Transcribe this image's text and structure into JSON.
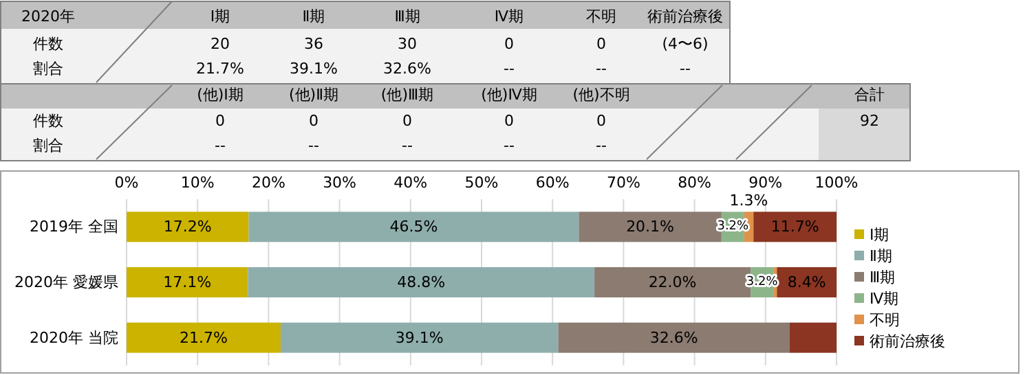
{
  "chart_data": {
    "type": "bar",
    "orientation": "horizontal",
    "stacked": true,
    "categories": [
      "2019年 全国",
      "2020年 愛媛県",
      "2020年 当院"
    ],
    "series": [
      {
        "name": "Ⅰ期",
        "color": "#cbb300",
        "values": [
          17.2,
          17.1,
          21.7
        ],
        "value_labels": [
          "17.2%",
          "17.1%",
          "21.7%"
        ]
      },
      {
        "name": "Ⅱ期",
        "color": "#8eaeac",
        "values": [
          46.5,
          48.8,
          39.1
        ],
        "value_labels": [
          "46.5%",
          "48.8%",
          "39.1%"
        ]
      },
      {
        "name": "Ⅲ期",
        "color": "#8b7b70",
        "values": [
          20.1,
          22.0,
          32.6
        ],
        "value_labels": [
          "20.1%",
          "22.0%",
          "32.6%"
        ]
      },
      {
        "name": "Ⅳ期",
        "color": "#8db58a",
        "values": [
          3.2,
          3.2,
          0
        ],
        "value_labels": [
          "3.2%",
          "3.2%",
          null
        ]
      },
      {
        "name": "不明",
        "color": "#e0924a",
        "values": [
          1.3,
          0.5,
          0
        ],
        "value_labels": [
          "1.3%",
          null,
          null
        ]
      },
      {
        "name": "術前治療後",
        "color": "#8b3522",
        "values": [
          11.7,
          8.4,
          6.6
        ],
        "value_labels": [
          "11.7%",
          "8.4%",
          null
        ]
      }
    ],
    "xlim": [
      0,
      100
    ],
    "xticks": [
      {
        "value": 0,
        "label": "0%"
      },
      {
        "value": 10,
        "label": "10%"
      },
      {
        "value": 20,
        "label": "20%"
      },
      {
        "value": 30,
        "label": "30%"
      },
      {
        "value": 40,
        "label": "40%"
      },
      {
        "value": 50,
        "label": "50%"
      },
      {
        "value": 60,
        "label": "60%"
      },
      {
        "value": 70,
        "label": "70%"
      },
      {
        "value": 80,
        "label": "80%"
      },
      {
        "value": 90,
        "label": "90%"
      },
      {
        "value": 100,
        "label": "100%"
      }
    ],
    "grid": "x",
    "legend": "right",
    "annotations": [
      "2020年",
      "Ⅰ期",
      "Ⅱ期",
      "Ⅲ期",
      "Ⅳ期",
      "不明",
      "術前治療後",
      "件数",
      "20",
      "36",
      "30",
      "0",
      "0",
      "(4〜6)",
      "割合",
      "21.7%",
      "39.1%",
      "32.6%",
      "--",
      "--",
      "--",
      "(他)Ⅰ期",
      "(他)Ⅱ期",
      "(他)Ⅲ期",
      "(他)Ⅳ期",
      "(他)不明",
      "合計",
      "件数",
      "0",
      "0",
      "0",
      "0",
      "0",
      "92",
      "割合",
      "--",
      "--",
      "--",
      "--",
      "--"
    ]
  }
}
